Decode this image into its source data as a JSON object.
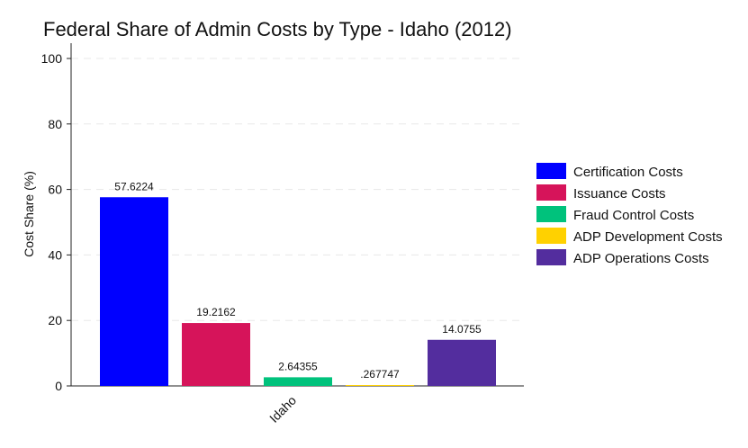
{
  "chart_data": {
    "type": "bar",
    "title": "Federal Share of Admin Costs by Type - Idaho (2012)",
    "ylabel": "Cost Share (%)",
    "xlabel": "",
    "categories": [
      "Idaho"
    ],
    "ylim": [
      0,
      100
    ],
    "yticks": [
      0,
      20,
      40,
      60,
      80,
      100
    ],
    "grid": true,
    "legend_position": "right",
    "series": [
      {
        "name": "Certification Costs",
        "values": [
          57.6224
        ],
        "label": "57.6224",
        "color": "#0000ff"
      },
      {
        "name": "Issuance Costs",
        "values": [
          19.2162
        ],
        "label": "19.2162",
        "color": "#d6145a"
      },
      {
        "name": "Fraud Control Costs",
        "values": [
          2.64355
        ],
        "label": "2.64355",
        "color": "#00c27c"
      },
      {
        "name": "ADP Development Costs",
        "values": [
          0.267747
        ],
        "label": ".267747",
        "color": "#ffd100"
      },
      {
        "name": "ADP Operations Costs",
        "values": [
          14.0755
        ],
        "label": "14.0755",
        "color": "#532d9e"
      }
    ]
  }
}
